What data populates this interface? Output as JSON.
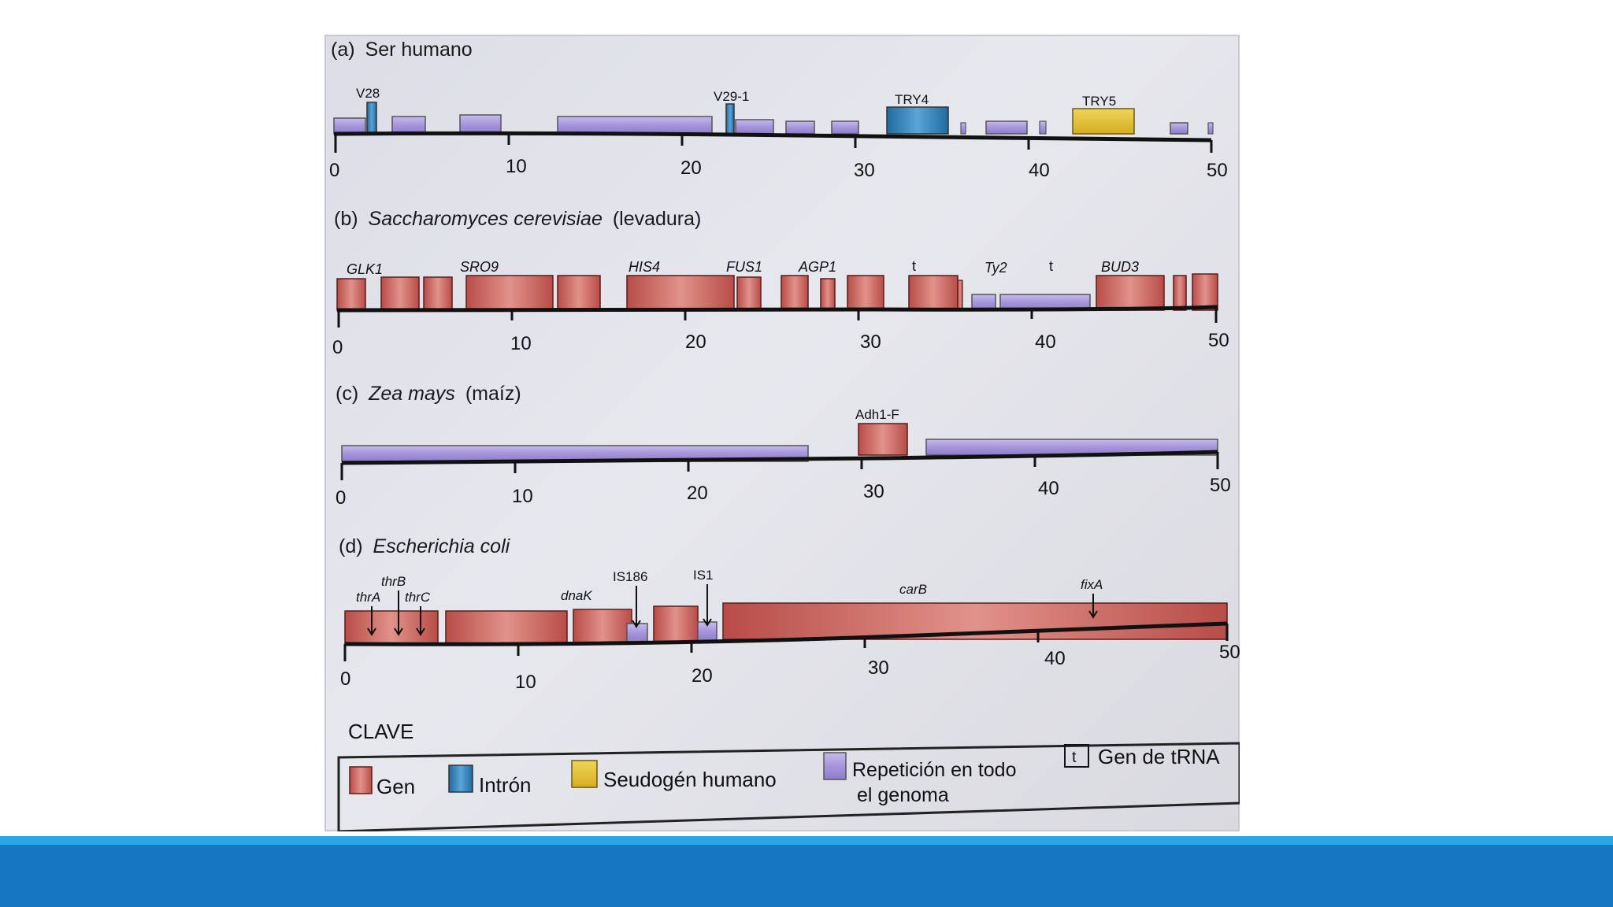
{
  "colors": {
    "gene": "#c9615a",
    "intron": "#2f7fb7",
    "pseudogene": "#e3c23a",
    "repeat": "#a99ad8",
    "band": "#1776c2",
    "band_top": "#2aa6e2"
  },
  "panels": [
    {
      "id": "a",
      "letter": "(a)",
      "name": "Ser humano",
      "italic": "",
      "suffix": "",
      "ticks": [
        "0",
        "10",
        "20",
        "30",
        "40",
        "50"
      ],
      "labels": [
        {
          "text": "V28",
          "style": "normal"
        },
        {
          "text": "V29-1",
          "style": "normal"
        },
        {
          "text": "TRY4",
          "style": "normal"
        },
        {
          "text": "TRY5",
          "style": "normal"
        }
      ]
    },
    {
      "id": "b",
      "letter": "(b)",
      "name": "",
      "italic": "Saccharomyces cerevisiae",
      "suffix": "(levadura)",
      "ticks": [
        "0",
        "10",
        "20",
        "30",
        "40",
        "50"
      ],
      "labels": [
        {
          "text": "GLK1"
        },
        {
          "text": "SRO9"
        },
        {
          "text": "HIS4"
        },
        {
          "text": "FUS1"
        },
        {
          "text": "AGP1"
        },
        {
          "text": "t"
        },
        {
          "text": "Ty2"
        },
        {
          "text": "t"
        },
        {
          "text": "BUD3"
        }
      ]
    },
    {
      "id": "c",
      "letter": "(c)",
      "name": "",
      "italic": "Zea mays",
      "suffix": "(maíz)",
      "ticks": [
        "0",
        "10",
        "20",
        "30",
        "40",
        "50"
      ],
      "labels": [
        {
          "text": "Adh1-F"
        }
      ]
    },
    {
      "id": "d",
      "letter": "(d)",
      "name": "",
      "italic": "Escherichia coli",
      "suffix": "",
      "ticks": [
        "0",
        "10",
        "20",
        "30",
        "40",
        "50"
      ],
      "labels": [
        {
          "text": "thrB"
        },
        {
          "text": "thrA"
        },
        {
          "text": "thrC"
        },
        {
          "text": "dnaK"
        },
        {
          "text": "IS186"
        },
        {
          "text": "IS1"
        },
        {
          "text": "carB"
        },
        {
          "text": "fixA"
        }
      ]
    }
  ],
  "key": {
    "title": "CLAVE",
    "items": [
      {
        "label": "Gen"
      },
      {
        "label": "Intrón"
      },
      {
        "label": "Seudogén humano"
      },
      {
        "label_line1": "Repetición en todo",
        "label_line2": "el genoma"
      },
      {
        "symbol": "t",
        "label": "Gen de tRNA"
      }
    ]
  }
}
